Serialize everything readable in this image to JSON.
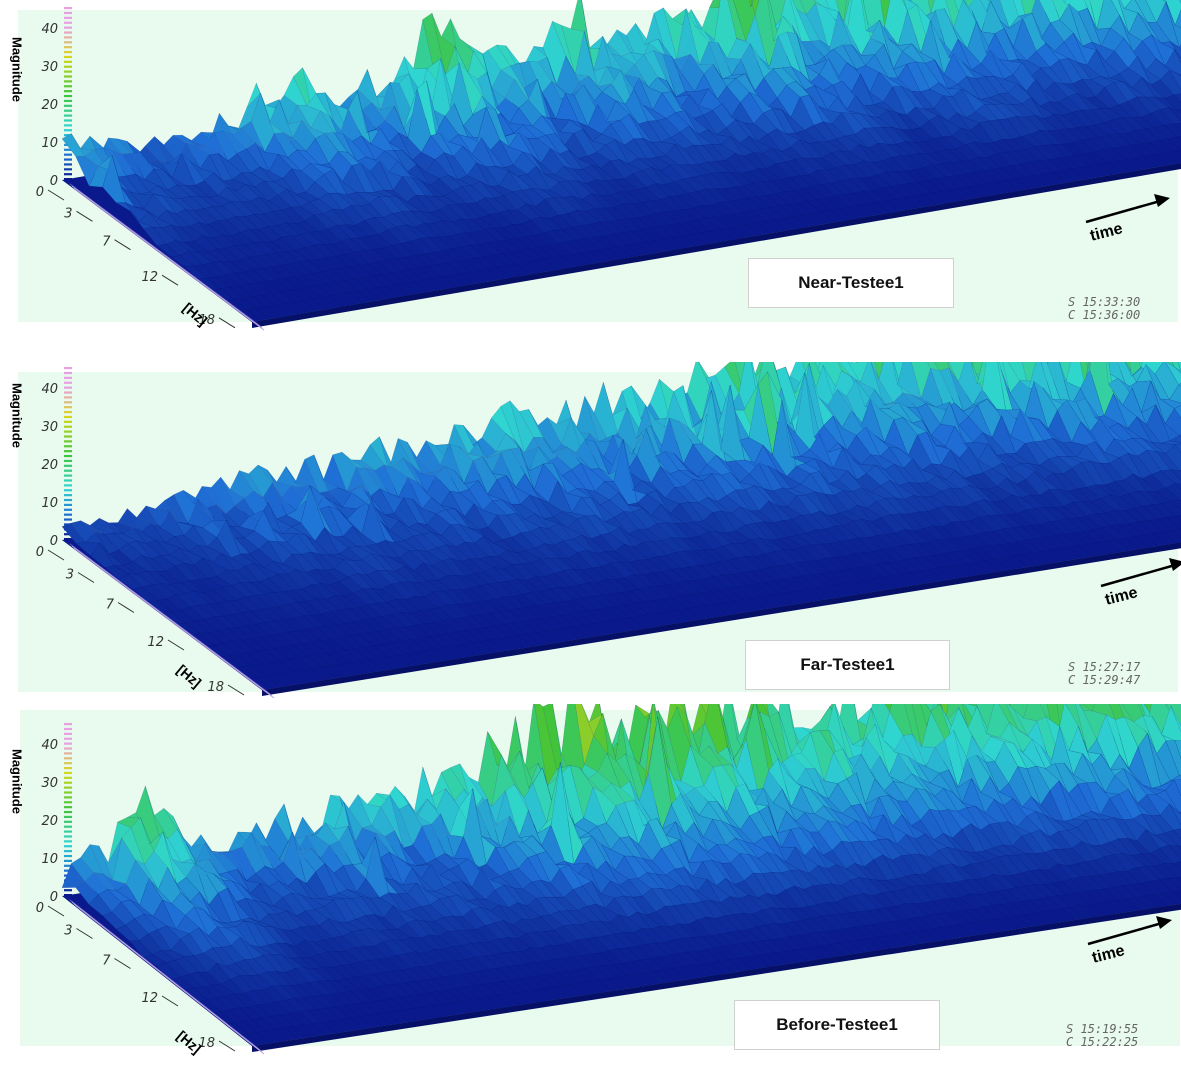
{
  "chart_data": [
    {
      "type": "area",
      "title": "Near-Testee1",
      "ylabel": "Magnitude",
      "xlabel": "time",
      "zlabel": "[Hz]",
      "magnitude_ticks": [
        "0",
        "10",
        "20",
        "30",
        "40"
      ],
      "ylim": [
        0,
        45
      ],
      "frequency_ticks": [
        "0",
        "3",
        "7",
        "12",
        "18"
      ],
      "stamp_start": "S 15:33:30",
      "stamp_end": "C 15:36:00",
      "peak_magnitude_trend": [
        14,
        8,
        10,
        22,
        14,
        28,
        16,
        25,
        18,
        30,
        22,
        34,
        26,
        32,
        38,
        45
      ]
    },
    {
      "type": "area",
      "title": "Far-Testee1",
      "ylabel": "Magnitude",
      "xlabel": "time",
      "zlabel": "[Hz]",
      "magnitude_ticks": [
        "0",
        "10",
        "20",
        "30",
        "40"
      ],
      "ylim": [
        0,
        45
      ],
      "frequency_ticks": [
        "0",
        "3",
        "7",
        "12",
        "18"
      ],
      "stamp_start": "S 15:27:17",
      "stamp_end": "C 15:29:47",
      "peak_magnitude_trend": [
        4,
        6,
        10,
        14,
        12,
        15,
        18,
        16,
        20,
        24,
        22,
        26,
        30,
        34,
        40,
        45
      ]
    },
    {
      "type": "area",
      "title": "Before-Testee1",
      "ylabel": "Magnitude",
      "xlabel": "time",
      "zlabel": "[Hz]",
      "magnitude_ticks": [
        "0",
        "10",
        "20",
        "30",
        "40"
      ],
      "ylim": [
        0,
        45
      ],
      "frequency_ticks": [
        "0",
        "3",
        "7",
        "12",
        "18"
      ],
      "stamp_start": "S 15:19:55",
      "stamp_end": "C 15:22:25",
      "peak_magnitude_trend": [
        6,
        28,
        10,
        14,
        16,
        20,
        30,
        36,
        34,
        32,
        30,
        28,
        34,
        40,
        44,
        45
      ]
    }
  ],
  "colors": {
    "background": "#e9fbef",
    "deep": "#0a1a8c",
    "mid": "#1f6fd6",
    "cyan": "#2fd6d0",
    "green": "#3fc43a",
    "yellow": "#d8d81a",
    "pink": "#e8a0e0"
  }
}
